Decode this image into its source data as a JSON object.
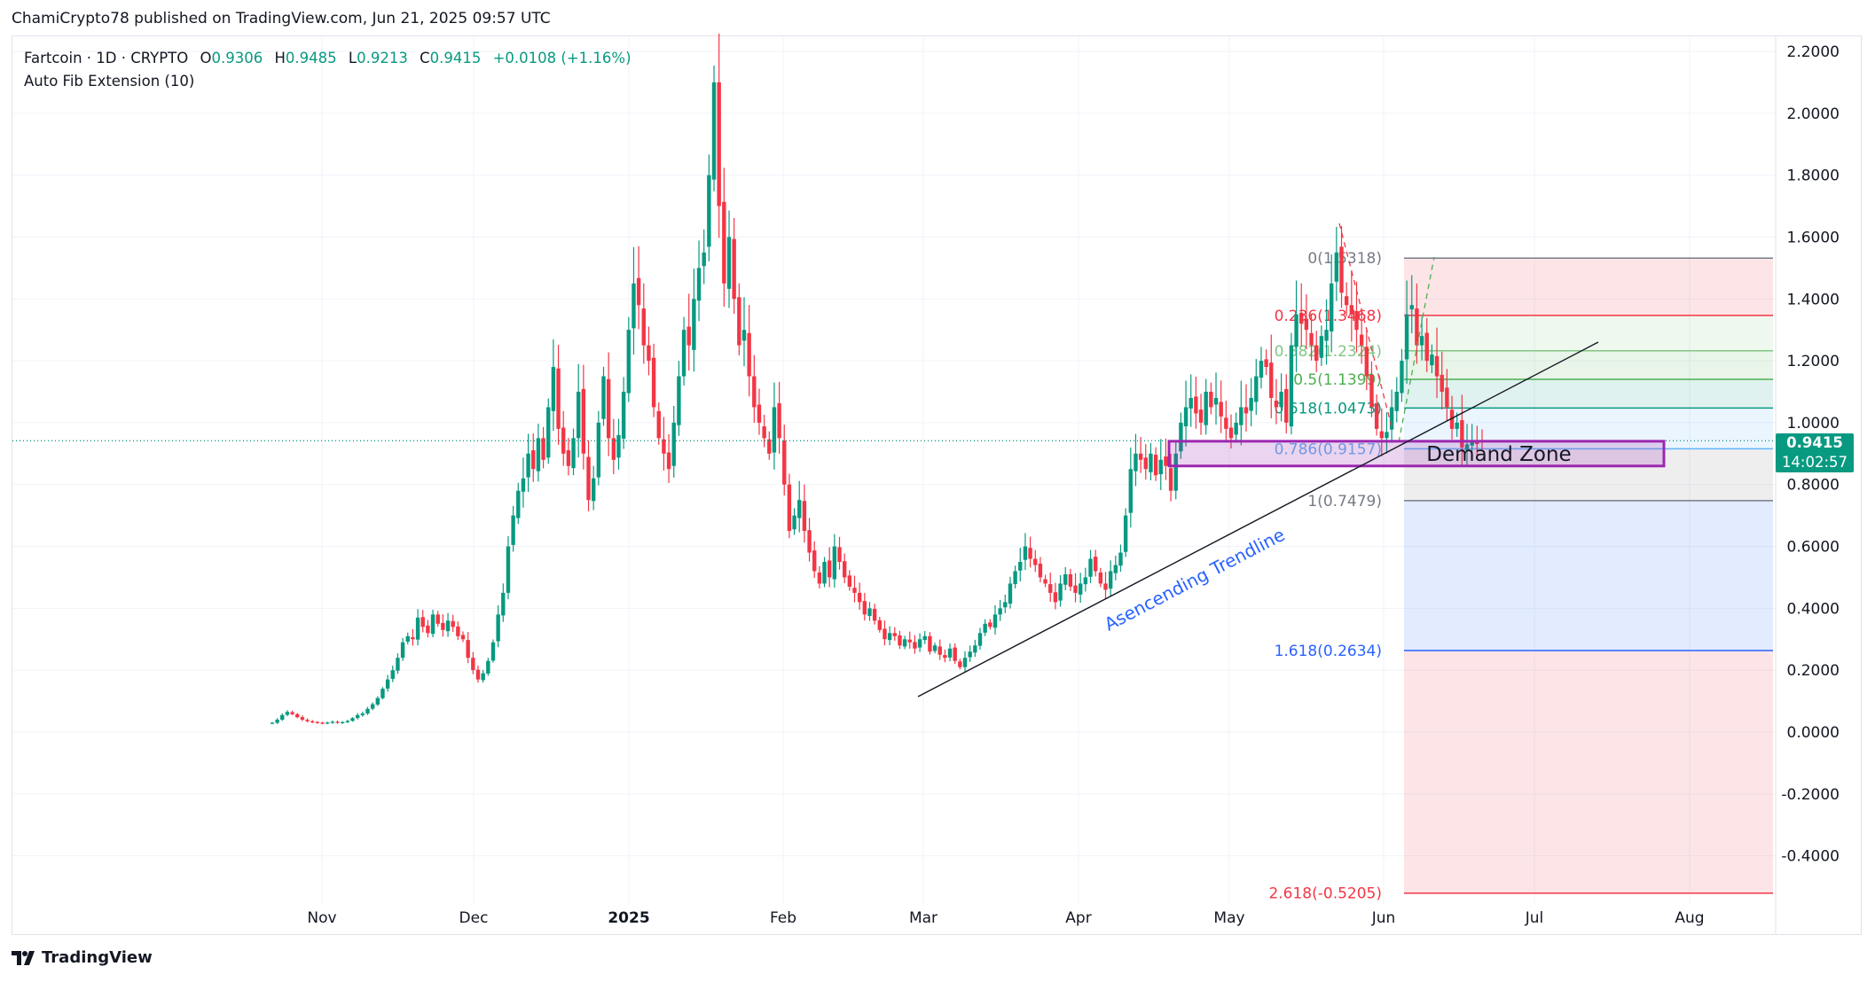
{
  "header": {
    "published": "ChamiCrypto78 published on TradingView.com, Jun 21, 2025 09:57 UTC"
  },
  "legend": {
    "symbol": "Fartcoin · 1D · CRYPTO",
    "o_label": "O",
    "o": "0.9306",
    "h_label": "H",
    "h": "0.9485",
    "l_label": "L",
    "l": "0.9213",
    "c_label": "C",
    "c": "0.9415",
    "change": "+0.0108 (+1.16%)",
    "indicator": "Auto Fib Extension (10)"
  },
  "price_box": {
    "price": "0.9415",
    "countdown": "14:02:57"
  },
  "footer": {
    "brand": "TradingView"
  },
  "colors": {
    "up": "#089981",
    "down": "#f23645",
    "demand": "#9c27b0",
    "trend_text": "#2962ff"
  },
  "chart_data": {
    "type": "candlestick",
    "title": "Fartcoin · 1D · CRYPTO",
    "ylim": [
      -0.55,
      2.25
    ],
    "y_ticks": [
      "2.2000",
      "2.0000",
      "1.8000",
      "1.6000",
      "1.4000",
      "1.2000",
      "1.0000",
      "0.8000",
      "0.6000",
      "0.4000",
      "0.2000",
      "0.0000",
      "-0.2000",
      "-0.4000"
    ],
    "x_ticks": [
      "Nov",
      "Dec",
      "2025",
      "Feb",
      "Mar",
      "Apr",
      "May",
      "Jun",
      "Jul",
      "Aug"
    ],
    "first_close_date": "2024-10-23",
    "last_close_date": "2025-06-21",
    "closes": [
      0.03,
      0.04,
      0.055,
      0.065,
      0.058,
      0.048,
      0.04,
      0.035,
      0.032,
      0.03,
      0.028,
      0.031,
      0.033,
      0.03,
      0.032,
      0.036,
      0.045,
      0.055,
      0.06,
      0.075,
      0.09,
      0.11,
      0.14,
      0.17,
      0.2,
      0.24,
      0.29,
      0.31,
      0.3,
      0.37,
      0.34,
      0.32,
      0.38,
      0.35,
      0.33,
      0.36,
      0.34,
      0.31,
      0.3,
      0.24,
      0.2,
      0.17,
      0.19,
      0.23,
      0.29,
      0.38,
      0.45,
      0.6,
      0.7,
      0.78,
      0.82,
      0.9,
      0.85,
      0.95,
      0.88,
      1.05,
      1.18,
      0.98,
      0.9,
      0.86,
      0.95,
      1.1,
      0.9,
      0.75,
      0.82,
      1.0,
      1.15,
      0.95,
      0.88,
      0.96,
      1.1,
      1.3,
      1.45,
      1.38,
      1.25,
      1.2,
      1.05,
      0.95,
      0.9,
      0.85,
      1.0,
      1.15,
      1.3,
      1.25,
      1.4,
      1.5,
      1.55,
      1.8,
      2.1,
      1.7,
      1.45,
      1.6,
      1.4,
      1.25,
      1.3,
      1.15,
      1.05,
      1.0,
      0.95,
      0.9,
      1.05,
      0.95,
      0.8,
      0.65,
      0.7,
      0.75,
      0.65,
      0.58,
      0.52,
      0.48,
      0.55,
      0.5,
      0.6,
      0.55,
      0.5,
      0.47,
      0.45,
      0.42,
      0.38,
      0.4,
      0.36,
      0.33,
      0.3,
      0.32,
      0.31,
      0.28,
      0.3,
      0.29,
      0.27,
      0.3,
      0.31,
      0.26,
      0.28,
      0.25,
      0.24,
      0.27,
      0.23,
      0.21,
      0.24,
      0.26,
      0.28,
      0.32,
      0.35,
      0.34,
      0.38,
      0.4,
      0.42,
      0.48,
      0.52,
      0.55,
      0.6,
      0.56,
      0.54,
      0.5,
      0.48,
      0.45,
      0.42,
      0.48,
      0.51,
      0.47,
      0.45,
      0.48,
      0.5,
      0.56,
      0.52,
      0.48,
      0.46,
      0.52,
      0.54,
      0.58,
      0.7,
      0.85,
      0.9,
      0.88,
      0.85,
      0.9,
      0.83,
      0.88,
      0.86,
      0.78,
      0.9,
      1.0,
      1.05,
      1.08,
      1.03,
      1.0,
      1.1,
      1.05,
      1.08,
      1.02,
      0.98,
      0.95,
      1.0,
      1.05,
      1.03,
      1.08,
      1.15,
      1.2,
      1.18,
      1.08,
      1.05,
      1.1,
      1.0,
      1.25,
      1.35,
      1.32,
      1.3,
      1.25,
      1.2,
      1.28,
      1.3,
      1.45,
      1.55,
      1.42,
      1.38,
      1.35,
      1.3,
      1.25,
      1.15,
      1.05,
      0.98,
      0.95,
      0.97,
      1.05,
      1.1,
      1.2,
      1.35,
      1.38,
      1.25,
      1.28,
      1.2,
      1.22,
      1.15,
      1.1,
      1.05,
      0.98,
      1.0,
      0.92,
      0.93,
      0.94,
      0.931,
      0.9415
    ],
    "last_price": 0.9415,
    "fib_levels": [
      {
        "ratio": 0,
        "price": 1.5318,
        "label": "0(1.5318)",
        "color": "#787b86"
      },
      {
        "ratio": 0.236,
        "price": 1.3468,
        "label": "0.236(1.3468)",
        "color": "#f23645"
      },
      {
        "ratio": 0.382,
        "price": 1.2324,
        "label": "0.382(1.2324)",
        "color": "#81c784"
      },
      {
        "ratio": 0.5,
        "price": 1.1399,
        "label": "0.5(1.1399)",
        "color": "#4caf50"
      },
      {
        "ratio": 0.618,
        "price": 1.0473,
        "label": "0.618(1.0473)",
        "color": "#089981"
      },
      {
        "ratio": 0.786,
        "price": 0.9157,
        "label": "0.786(0.9157)",
        "color": "#64b5f6"
      },
      {
        "ratio": 1,
        "price": 0.7479,
        "label": "1(0.7479)",
        "color": "#787b86"
      },
      {
        "ratio": 1.618,
        "price": 0.2634,
        "label": "1.618(0.2634)",
        "color": "#2962ff"
      },
      {
        "ratio": 2.618,
        "price": -0.5205,
        "label": "2.618(-0.5205)",
        "color": "#f23645"
      }
    ],
    "annotations": {
      "demand_zone": {
        "label": "Demand Zone",
        "top": 0.94,
        "bottom": 0.86
      },
      "trendline": {
        "label": "Asencending Trendline"
      }
    }
  }
}
